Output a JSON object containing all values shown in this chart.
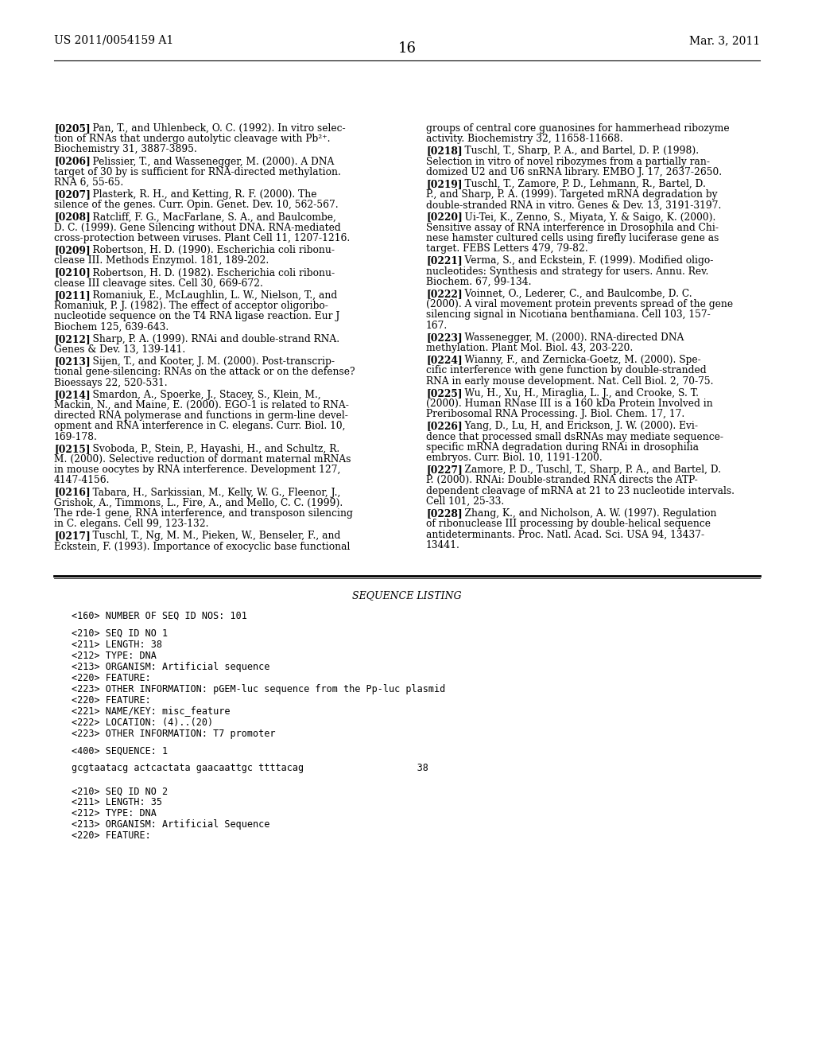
{
  "background_color": "#ffffff",
  "header_left": "US 2011/0054159 A1",
  "header_right": "Mar. 3, 2011",
  "page_number": "16",
  "left_refs": [
    [
      "0205",
      "Pan, T., and Uhlenbeck, O. C. (1992). In vitro selec-\ntion of RNAs that undergo autolytic cleavage with Pb²⁺.\nBiochemistry 31, 3887-3895."
    ],
    [
      "0206",
      "Pelissier, T., and Wassenegger, M. (2000). A DNA\ntarget of 30 by is sufficient for RNA-directed methylation.\nRNA 6, 55-65."
    ],
    [
      "0207",
      "Plasterk, R. H., and Ketting, R. F. (2000). The\nsilence of the genes. Curr. Opin. Genet. Dev. 10, 562-567."
    ],
    [
      "0208",
      "Ratcliff, F. G., MacFarlane, S. A., and Baulcombe,\nD. C. (1999). Gene Silencing without DNA. RNA-mediated\ncross-protection between viruses. Plant Cell 11, 1207-1216."
    ],
    [
      "0209",
      "Robertson, H. D. (1990). Escherichia coli ribonu-\nclease III. Methods Enzymol. 181, 189-202."
    ],
    [
      "0210",
      "Robertson, H. D. (1982). Escherichia coli ribonu-\nclease III cleavage sites. Cell 30, 669-672."
    ],
    [
      "0211",
      "Romaniuk, E., McLaughlin, L. W., Nielson, T., and\nRomaniuk, P. J. (1982). The effect of acceptor oligoribo-\nnucleotide sequence on the T4 RNA ligase reaction. Eur J\nBiochem 125, 639-643."
    ],
    [
      "0212",
      "Sharp, P. A. (1999). RNAi and double-strand RNA.\nGenes & Dev. 13, 139-141."
    ],
    [
      "0213",
      "Sijen, T., and Kooter, J. M. (2000). Post-transcrip-\ntional gene-silencing: RNAs on the attack or on the defense?\nBioessays 22, 520-531."
    ],
    [
      "0214",
      "Smardon, A., Spoerke, J., Stacey, S., Klein, M.,\nMackin, N., and Maine, E. (2000). EGO-1 is related to RNA-\ndirected RNA polymerase and functions in germ-line devel-\nopment and RNA interference in C. elegans. Curr. Biol. 10,\n169-178."
    ],
    [
      "0215",
      "Svoboda, P., Stein, P., Hayashi, H., and Schultz, R.\nM. (2000). Selective reduction of dormant maternal mRNAs\nin mouse oocytes by RNA interference. Development 127,\n4147-4156."
    ],
    [
      "0216",
      "Tabara, H., Sarkissian, M., Kelly, W. G., Fleenor, J.,\nGrishok, A., Timmons, L., Fire, A., and Mello, C. C. (1999).\nThe rde-1 gene, RNA interference, and transposon silencing\nin C. elegans. Cell 99, 123-132."
    ],
    [
      "0217",
      "Tuschl, T., Ng, M. M., Pieken, W., Benseler, F., and\nEckstein, F. (1993). Importance of exocyclic base functional"
    ]
  ],
  "right_refs": [
    [
      "",
      "groups of central core guanosines for hammerhead ribozyme\nactivity. Biochemistry 32, 11658-11668."
    ],
    [
      "0218",
      "Tuschl, T., Sharp, P. A., and Bartel, D. P. (1998).\nSelection in vitro of novel ribozymes from a partially ran-\ndomized U2 and U6 snRNA library. EMBO J. 17, 2637-2650."
    ],
    [
      "0219",
      "Tuschl, T., Zamore, P. D., Lehmann, R., Bartel, D.\nP., and Sharp, P. A. (1999). Targeted mRNA degradation by\ndouble-stranded RNA in vitro. Genes & Dev. 13, 3191-3197."
    ],
    [
      "0220",
      "Ui-Tei, K., Zenno, S., Miyata, Y. & Saigo, K. (2000).\nSensitive assay of RNA interference in Drosophila and Chi-\nnese hamster cultured cells using firefly luciferase gene as\ntarget. FEBS Letters 479, 79-82."
    ],
    [
      "0221",
      "Verma, S., and Eckstein, F. (1999). Modified oligo-\nnucleotides: Synthesis and strategy for users. Annu. Rev.\nBiochem. 67, 99-134."
    ],
    [
      "0222",
      "Voinnet, O., Lederer, C., and Baulcombe, D. C.\n(2000). A viral movement protein prevents spread of the gene\nsilencing signal in Nicotiana benthamiana. Cell 103, 157-\n167."
    ],
    [
      "0223",
      "Wassenegger, M. (2000). RNA-directed DNA\nmethylation. Plant Mol. Biol. 43, 203-220."
    ],
    [
      "0224",
      "Wianny, F., and Zernicka-Goetz, M. (2000). Spe-\ncific interference with gene function by double-stranded\nRNA in early mouse development. Nat. Cell Biol. 2, 70-75."
    ],
    [
      "0225",
      "Wu, H., Xu, H., Miraglia, L. J., and Crooke, S. T.\n(2000). Human RNase III is a 160 kDa Protein Involved in\nPreribosomal RNA Processing. J. Biol. Chem. 17, 17."
    ],
    [
      "0226",
      "Yang, D., Lu, H, and Erickson, J. W. (2000). Evi-\ndence that processed small dsRNAs may mediate sequence-\nspecific mRNA degradation during RNAi in drosophilia\nembryos. Curr. Biol. 10, 1191-1200."
    ],
    [
      "0227",
      "Zamore, P. D., Tuschl, T., Sharp, P. A., and Bartel, D.\nP. (2000). RNAi: Double-stranded RNA directs the ATP-\ndependent cleavage of mRNA at 21 to 23 nucleotide intervals.\nCell 101, 25-33."
    ],
    [
      "0228",
      "Zhang, K., and Nicholson, A. W. (1997). Regulation\nof ribonuclease III processing by double-helical sequence\nantideterminants. Proc. Natl. Acad. Sci. USA 94, 13437-\n13441."
    ]
  ],
  "seq_lines": [
    "<160> NUMBER OF SEQ ID NOS: 101",
    "",
    "<210> SEQ ID NO 1",
    "<211> LENGTH: 38",
    "<212> TYPE: DNA",
    "<213> ORGANISM: Artificial sequence",
    "<220> FEATURE:",
    "<223> OTHER INFORMATION: pGEM-luc sequence from the Pp-luc plasmid",
    "<220> FEATURE:",
    "<221> NAME/KEY: misc_feature",
    "<222> LOCATION: (4)..(20)",
    "<223> OTHER INFORMATION: T7 promoter",
    "",
    "<400> SEQUENCE: 1",
    "",
    "gcgtaatacg actcactata gaacaattgc ttttacag                    38",
    "",
    "",
    "<210> SEQ ID NO 2",
    "<211> LENGTH: 35",
    "<212> TYPE: DNA",
    "<213> ORGANISM: Artificial Sequence",
    "<220> FEATURE:"
  ]
}
